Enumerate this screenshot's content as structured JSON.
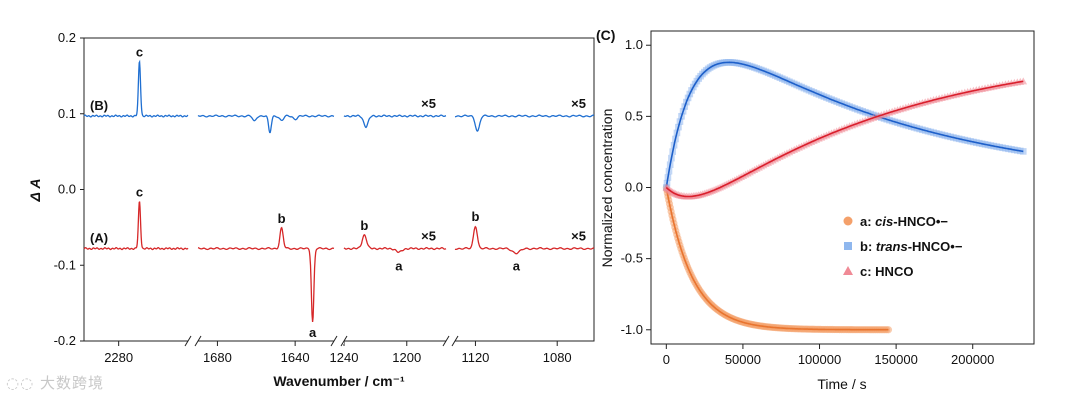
{
  "chart_data": [
    {
      "type": "line",
      "title": "",
      "xlabel": "Wavenumber / cm⁻¹",
      "ylabel": "Δ A",
      "ylim": [
        -0.2,
        0.2
      ],
      "yticks": [
        -0.2,
        -0.1,
        0.0,
        0.1,
        0.2
      ],
      "ytick_labels": [
        "-0.2",
        "-0.1",
        "0.0",
        "0.1",
        "0.2"
      ],
      "segments": [
        {
          "range": [
            2310,
            2220
          ],
          "ticks": [
            2280
          ]
        },
        {
          "range": [
            1690,
            1620
          ],
          "ticks": [
            1680,
            1640
          ]
        },
        {
          "range": [
            1240,
            1175
          ],
          "ticks": [
            1240,
            1200
          ]
        },
        {
          "range": [
            1130,
            1062
          ],
          "ticks": [
            1120,
            1080
          ]
        }
      ],
      "series": [
        {
          "name": "(B)",
          "color": "#1f6fd1",
          "baseline": 0.097,
          "scale_note": "×5",
          "peaks": [
            {
              "x": 2262,
              "dy": 0.072,
              "w": 1.3,
              "label": "c"
            },
            {
              "x": 1661,
              "dy": -0.007,
              "w": 1.2
            },
            {
              "x": 1653,
              "dy": -0.022,
              "w": 1.0
            },
            {
              "x": 1647,
              "dy": -0.006,
              "w": 1.4
            },
            {
              "x": 1640,
              "dy": -0.004,
              "w": 1.5
            },
            {
              "x": 1226,
              "dy": -0.014,
              "w": 2.0
            },
            {
              "x": 1119,
              "dy": -0.02,
              "w": 1.4
            }
          ]
        },
        {
          "name": "(A)",
          "color": "#d62728",
          "baseline": -0.078,
          "scale_note": "×5",
          "peaks": [
            {
              "x": 2262,
              "dy": 0.062,
              "w": 1.3,
              "label": "c"
            },
            {
              "x": 1647,
              "dy": 0.027,
              "w": 1.2,
              "label": "b"
            },
            {
              "x": 1631,
              "dy": -0.097,
              "w": 0.9,
              "label": "a"
            },
            {
              "x": 1227,
              "dy": 0.018,
              "w": 2.0,
              "label": "b"
            },
            {
              "x": 1205,
              "dy": -0.005,
              "w": 2.5,
              "label": "a"
            },
            {
              "x": 1120,
              "dy": 0.03,
              "w": 1.3,
              "label": "b"
            },
            {
              "x": 1100,
              "dy": -0.006,
              "w": 2.5,
              "label": "a"
            }
          ]
        }
      ]
    },
    {
      "type": "scatter",
      "panel_label": "(C)",
      "xlabel": "Time / s",
      "ylabel": "Normalized concentration",
      "xlim": [
        -10000,
        240000
      ],
      "ylim": [
        -1.1,
        1.1
      ],
      "xticks": [
        0,
        50000,
        100000,
        150000,
        200000
      ],
      "yticks": [
        -1.0,
        -0.5,
        0.0,
        0.5,
        1.0
      ],
      "ytick_labels": [
        "-1.0",
        "-0.5",
        "0.0",
        "0.5",
        "1.0"
      ],
      "series": [
        {
          "key": "a",
          "prefix": "a: ",
          "italic": "cis",
          "suffix": "-HNCO•−",
          "color": "#f4a06a",
          "line": "#e8742f",
          "marker": "circle",
          "tmax": 145000,
          "model": "y = -(1 - exp(-t/17000))"
        },
        {
          "key": "b",
          "prefix": "b: ",
          "italic": "trans",
          "suffix": "-HNCO•−",
          "color": "#8fb7ee",
          "line": "#1d5fc9",
          "marker": "square",
          "tmax": 233000,
          "model": "y = 1.34*(exp(-t/140000) - exp(-t/17000))"
        },
        {
          "key": "c",
          "prefix": "c: ",
          "italic": "",
          "suffix": "HNCO",
          "color": "#f08a96",
          "line": "#d91f2c",
          "marker": "triangle",
          "tmax": 233000,
          "model": "y = 1 - a - b"
        }
      ]
    }
  ],
  "watermark": "大数跨境"
}
